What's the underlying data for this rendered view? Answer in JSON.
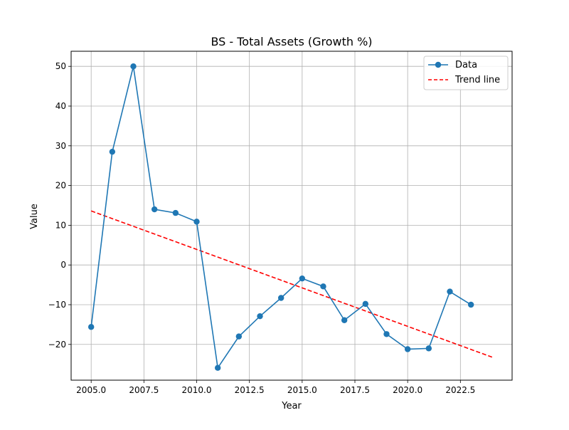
{
  "chart_data": {
    "type": "line",
    "title": "BS - Total Assets (Growth %)",
    "xlabel": "Year",
    "ylabel": "Value",
    "xlim": [
      2004.05,
      2024.95
    ],
    "ylim": [
      -29.0,
      53.8
    ],
    "grid": true,
    "legend_position": "top-right",
    "x_ticks": [
      2005.0,
      2007.5,
      2010.0,
      2012.5,
      2015.0,
      2017.5,
      2020.0,
      2022.5
    ],
    "x_tick_labels": [
      "2005.0",
      "2007.5",
      "2010.0",
      "2012.5",
      "2015.0",
      "2017.5",
      "2020.0",
      "2022.5"
    ],
    "y_ticks": [
      -20,
      -10,
      0,
      10,
      20,
      30,
      40,
      50
    ],
    "y_tick_labels": [
      "−20",
      "−10",
      "0",
      "10",
      "20",
      "30",
      "40",
      "50"
    ],
    "series": [
      {
        "name": "Data",
        "color": "#1f77b4",
        "style": "solid-with-circle-markers",
        "x": [
          2005,
          2006,
          2007,
          2008,
          2009,
          2010,
          2011,
          2012,
          2013,
          2014,
          2015,
          2016,
          2017,
          2018,
          2019,
          2020,
          2021,
          2022,
          2023
        ],
        "values": [
          -15.6,
          28.5,
          50.0,
          14.0,
          13.1,
          10.9,
          -25.9,
          -18.0,
          -12.9,
          -8.3,
          -3.4,
          -5.4,
          -13.9,
          -9.8,
          -17.4,
          -21.2,
          -21.0,
          -6.7,
          -10.0
        ]
      },
      {
        "name": "Trend line",
        "color": "#ff0000",
        "style": "dashed",
        "x": [
          2005,
          2024
        ],
        "values": [
          13.6,
          -23.2
        ]
      }
    ]
  }
}
